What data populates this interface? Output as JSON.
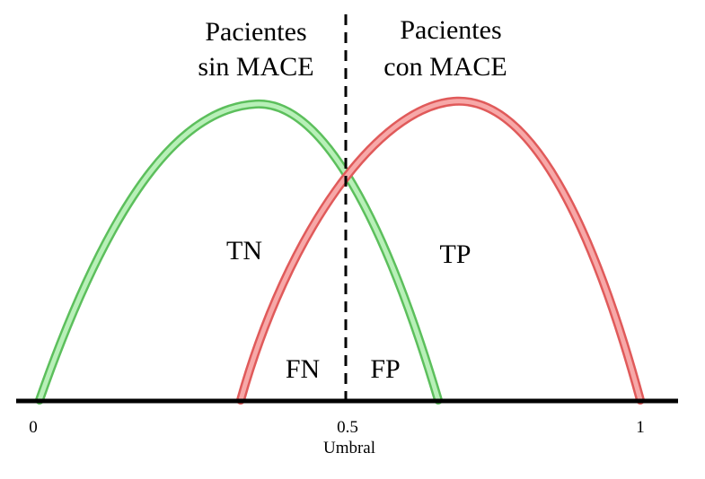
{
  "groups": {
    "negative": {
      "line1": "Pacientes",
      "line2": "sin MACE",
      "color": "#8fd98f",
      "edge": "#6cc46c"
    },
    "positive": {
      "line1": "Pacientes",
      "line2": "con MACE",
      "color": "#f08080",
      "edge": "#e05a5a"
    }
  },
  "regions": {
    "tn": "TN",
    "tp": "TP",
    "fn": "FN",
    "fp": "FP"
  },
  "axis": {
    "title": "Umbral",
    "ticks": [
      "0",
      "0.5",
      "1"
    ]
  },
  "threshold": 0.5
}
